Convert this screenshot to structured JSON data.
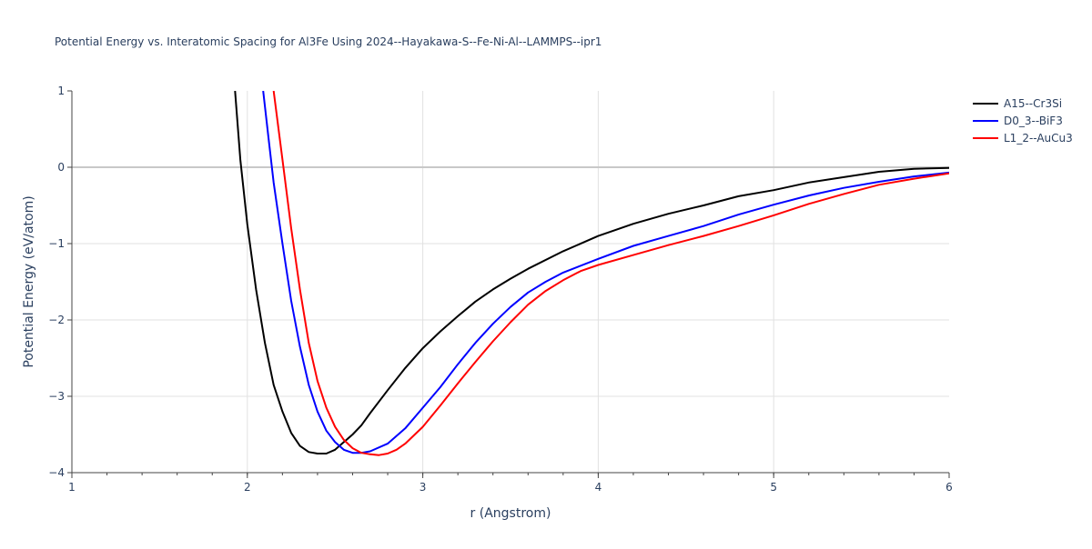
{
  "chart_data": {
    "type": "line",
    "title": "Potential Energy vs. Interatomic Spacing for Al3Fe Using 2024--Hayakawa-S--Fe-Ni-Al--LAMMPS--ipr1",
    "xlabel": "r (Angstrom)",
    "ylabel": "Potential Energy (eV/atom)",
    "xlim": [
      1,
      6
    ],
    "ylim": [
      -4,
      1
    ],
    "xticks": [
      "1",
      "2",
      "3",
      "4",
      "5",
      "6"
    ],
    "yticks": [
      "1",
      "0",
      "−1",
      "−2",
      "−3",
      "−4"
    ],
    "grid": true,
    "legend": "top-right",
    "series": [
      {
        "name": "A15--Cr3Si",
        "color": "#000000",
        "x": [
          1.93,
          1.96,
          2.0,
          2.05,
          2.1,
          2.15,
          2.2,
          2.25,
          2.3,
          2.35,
          2.4,
          2.45,
          2.5,
          2.55,
          2.6,
          2.65,
          2.7,
          2.8,
          2.9,
          3.0,
          3.1,
          3.2,
          3.3,
          3.4,
          3.5,
          3.6,
          3.8,
          4.0,
          4.2,
          4.4,
          4.6,
          4.8,
          5.0,
          5.2,
          5.4,
          5.6,
          5.8,
          6.0
        ],
        "y": [
          1,
          0.1,
          -0.75,
          -1.6,
          -2.3,
          -2.85,
          -3.2,
          -3.48,
          -3.65,
          -3.73,
          -3.75,
          -3.75,
          -3.7,
          -3.6,
          -3.5,
          -3.38,
          -3.22,
          -2.92,
          -2.63,
          -2.37,
          -2.15,
          -1.95,
          -1.76,
          -1.6,
          -1.46,
          -1.33,
          -1.1,
          -0.9,
          -0.74,
          -0.61,
          -0.5,
          -0.38,
          -0.3,
          -0.2,
          -0.13,
          -0.06,
          -0.02,
          -0.01
        ]
      },
      {
        "name": "D0_3--BiF3",
        "color": "#0000ff",
        "x": [
          2.09,
          2.12,
          2.15,
          2.2,
          2.25,
          2.3,
          2.35,
          2.4,
          2.45,
          2.5,
          2.55,
          2.6,
          2.65,
          2.7,
          2.8,
          2.9,
          3.0,
          3.1,
          3.2,
          3.3,
          3.4,
          3.5,
          3.6,
          3.7,
          3.8,
          4.0,
          4.2,
          4.4,
          4.6,
          4.8,
          5.0,
          5.2,
          5.4,
          5.6,
          5.8,
          6.0
        ],
        "y": [
          1,
          0.4,
          -0.2,
          -1.0,
          -1.75,
          -2.35,
          -2.85,
          -3.2,
          -3.45,
          -3.6,
          -3.7,
          -3.74,
          -3.74,
          -3.72,
          -3.62,
          -3.42,
          -3.15,
          -2.88,
          -2.58,
          -2.3,
          -2.05,
          -1.83,
          -1.64,
          -1.5,
          -1.38,
          -1.2,
          -1.03,
          -0.9,
          -0.77,
          -0.62,
          -0.49,
          -0.37,
          -0.27,
          -0.19,
          -0.12,
          -0.07
        ]
      },
      {
        "name": "L1_2--AuCu3",
        "color": "#ff0000",
        "x": [
          2.15,
          2.2,
          2.25,
          2.3,
          2.35,
          2.4,
          2.45,
          2.5,
          2.55,
          2.6,
          2.65,
          2.7,
          2.75,
          2.8,
          2.85,
          2.9,
          3.0,
          3.1,
          3.2,
          3.3,
          3.4,
          3.5,
          3.6,
          3.7,
          3.8,
          3.9,
          4.0,
          4.2,
          4.4,
          4.6,
          4.8,
          5.0,
          5.2,
          5.4,
          5.6,
          5.8,
          6.0
        ],
        "y": [
          1,
          0.1,
          -0.8,
          -1.6,
          -2.3,
          -2.8,
          -3.15,
          -3.4,
          -3.57,
          -3.68,
          -3.74,
          -3.76,
          -3.77,
          -3.75,
          -3.7,
          -3.62,
          -3.4,
          -3.12,
          -2.83,
          -2.55,
          -2.28,
          -2.03,
          -1.8,
          -1.62,
          -1.48,
          -1.36,
          -1.28,
          -1.15,
          -1.02,
          -0.9,
          -0.77,
          -0.63,
          -0.48,
          -0.35,
          -0.23,
          -0.15,
          -0.08
        ]
      }
    ]
  }
}
